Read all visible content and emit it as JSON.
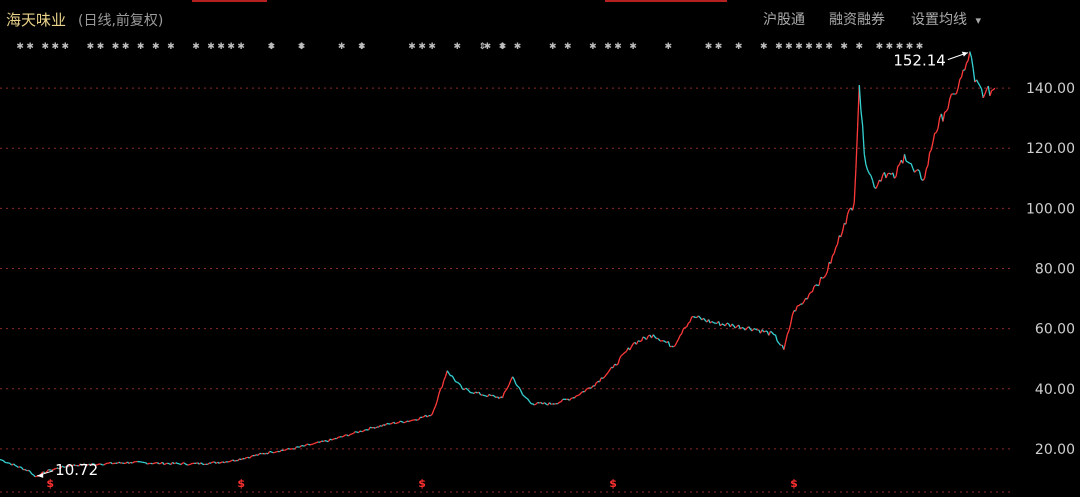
{
  "header": {
    "stock_name": "海天味业",
    "mode": "(日线,前复权)",
    "buttons": [
      "沪股通",
      "融资融券",
      "设置均线"
    ],
    "ma_dropdown_glyph": "▾"
  },
  "colors": {
    "up": "#ff3a3a",
    "down": "#35d2d2",
    "grid": "#8a2a2a",
    "axis": "#cfcfcf",
    "accent_red": "#b52020"
  },
  "chart_data": {
    "type": "line",
    "title": "",
    "xlabel": "",
    "ylabel": "",
    "ylim": [
      8,
      156
    ],
    "y_ticks": [
      20,
      40,
      60,
      80,
      100,
      120,
      140
    ],
    "y_tick_labels": [
      "20.00",
      "40.00",
      "60.00",
      "80.00",
      "100.00",
      "120.00",
      "140.00"
    ],
    "grid": true,
    "x_index_range": [
      0,
      100
    ],
    "series": [
      {
        "price_points": [
          [
            0,
            16.5
          ],
          [
            3,
            12.5
          ],
          [
            3.5,
            10.72
          ],
          [
            5,
            13
          ],
          [
            7,
            14.5
          ],
          [
            10,
            15
          ],
          [
            13,
            15.5
          ],
          [
            16,
            15.2
          ],
          [
            19,
            15
          ],
          [
            21,
            15.3
          ],
          [
            23,
            16
          ],
          [
            25,
            17.5
          ],
          [
            27,
            19
          ],
          [
            29,
            20
          ],
          [
            31,
            21.5
          ],
          [
            33,
            23
          ],
          [
            35,
            25
          ],
          [
            37,
            27
          ],
          [
            39,
            28.5
          ],
          [
            41,
            29.5
          ],
          [
            43,
            31.5
          ],
          [
            44.5,
            46
          ],
          [
            46,
            40
          ],
          [
            48,
            38
          ],
          [
            50,
            37
          ],
          [
            51,
            44
          ],
          [
            52,
            38
          ],
          [
            53,
            35
          ],
          [
            55,
            35
          ],
          [
            57,
            37
          ],
          [
            59,
            41
          ],
          [
            61,
            47
          ],
          [
            63,
            55
          ],
          [
            65,
            58
          ],
          [
            67,
            54
          ],
          [
            68,
            60
          ],
          [
            69,
            64
          ],
          [
            71,
            62
          ],
          [
            73,
            61
          ],
          [
            75,
            60
          ],
          [
            77,
            58
          ],
          [
            78,
            53
          ],
          [
            79,
            66
          ],
          [
            80,
            69
          ],
          [
            81,
            74
          ],
          [
            82,
            77
          ],
          [
            83,
            85
          ],
          [
            84,
            95
          ],
          [
            85,
            102
          ],
          [
            85.5,
            141
          ],
          [
            86,
            118
          ],
          [
            87,
            107
          ],
          [
            88,
            112
          ],
          [
            89,
            110
          ],
          [
            90,
            118
          ],
          [
            91,
            112
          ],
          [
            92,
            110
          ],
          [
            93,
            125
          ],
          [
            94,
            132
          ],
          [
            95,
            138
          ],
          [
            96,
            146
          ],
          [
            96.5,
            152.14
          ],
          [
            97,
            142
          ],
          [
            98,
            138
          ],
          [
            99,
            140
          ]
        ]
      }
    ],
    "annotations": [
      {
        "text": "152.14",
        "x": 96.5,
        "y": 152.14
      },
      {
        "text": "10.72",
        "x": 3.5,
        "y": 10.72
      }
    ],
    "event_marks": [
      {
        "glyph": "✱",
        "x_positions": [
          2,
          3,
          4.5,
          5.5,
          6.5,
          9,
          10,
          11.5,
          12.5,
          14,
          15.5,
          17,
          19.5,
          21,
          22,
          23,
          24,
          27,
          30,
          34,
          36,
          41,
          42,
          43,
          45.5,
          48.5,
          50,
          51.5,
          55,
          56.5,
          59,
          60.5,
          61.5,
          63,
          66.5,
          70.5,
          71.5,
          73.5,
          76,
          77.5,
          78.5,
          79.5,
          80.5,
          81.5,
          82.5,
          84,
          85.5,
          87.5,
          88.5,
          89.5,
          90.5,
          91.5
        ]
      },
      {
        "glyph": "⇕",
        "x_positions": [
          27,
          30,
          36,
          48,
          50
        ]
      }
    ],
    "dividend_marks": {
      "glyph": "$",
      "x_positions": [
        5,
        24,
        42,
        61,
        79
      ]
    }
  }
}
